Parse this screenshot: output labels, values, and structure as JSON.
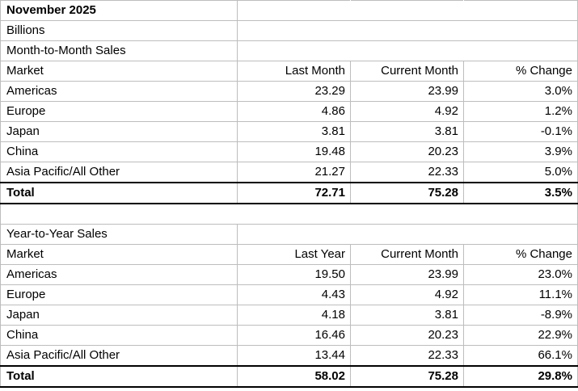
{
  "header": {
    "title": "November 2025",
    "unit": "Billions"
  },
  "sections": [
    {
      "title": "Month-to-Month Sales",
      "columns": [
        "Market",
        "Last Month",
        "Current Month",
        "% Change"
      ],
      "rows": [
        [
          "Americas",
          "23.29",
          "23.99",
          "3.0%"
        ],
        [
          "Europe",
          "4.86",
          "4.92",
          "1.2%"
        ],
        [
          "Japan",
          "3.81",
          "3.81",
          "-0.1%"
        ],
        [
          "China",
          "19.48",
          "20.23",
          "3.9%"
        ],
        [
          "Asia Pacific/All Other",
          "21.27",
          "22.33",
          "5.0%"
        ]
      ],
      "total": [
        "Total",
        "72.71",
        "75.28",
        "3.5%"
      ]
    },
    {
      "title": "Year-to-Year Sales",
      "columns": [
        "Market",
        "Last Year",
        "Current Month",
        "% Change"
      ],
      "rows": [
        [
          "Americas",
          "19.50",
          "23.99",
          "23.0%"
        ],
        [
          "Europe",
          "4.43",
          "4.92",
          "11.1%"
        ],
        [
          "Japan",
          "4.18",
          "3.81",
          "-8.9%"
        ],
        [
          "China",
          "16.46",
          "20.23",
          "22.9%"
        ],
        [
          "Asia Pacific/All Other",
          "13.44",
          "22.33",
          "66.1%"
        ]
      ],
      "total": [
        "Total",
        "58.02",
        "75.28",
        "29.8%"
      ]
    }
  ]
}
